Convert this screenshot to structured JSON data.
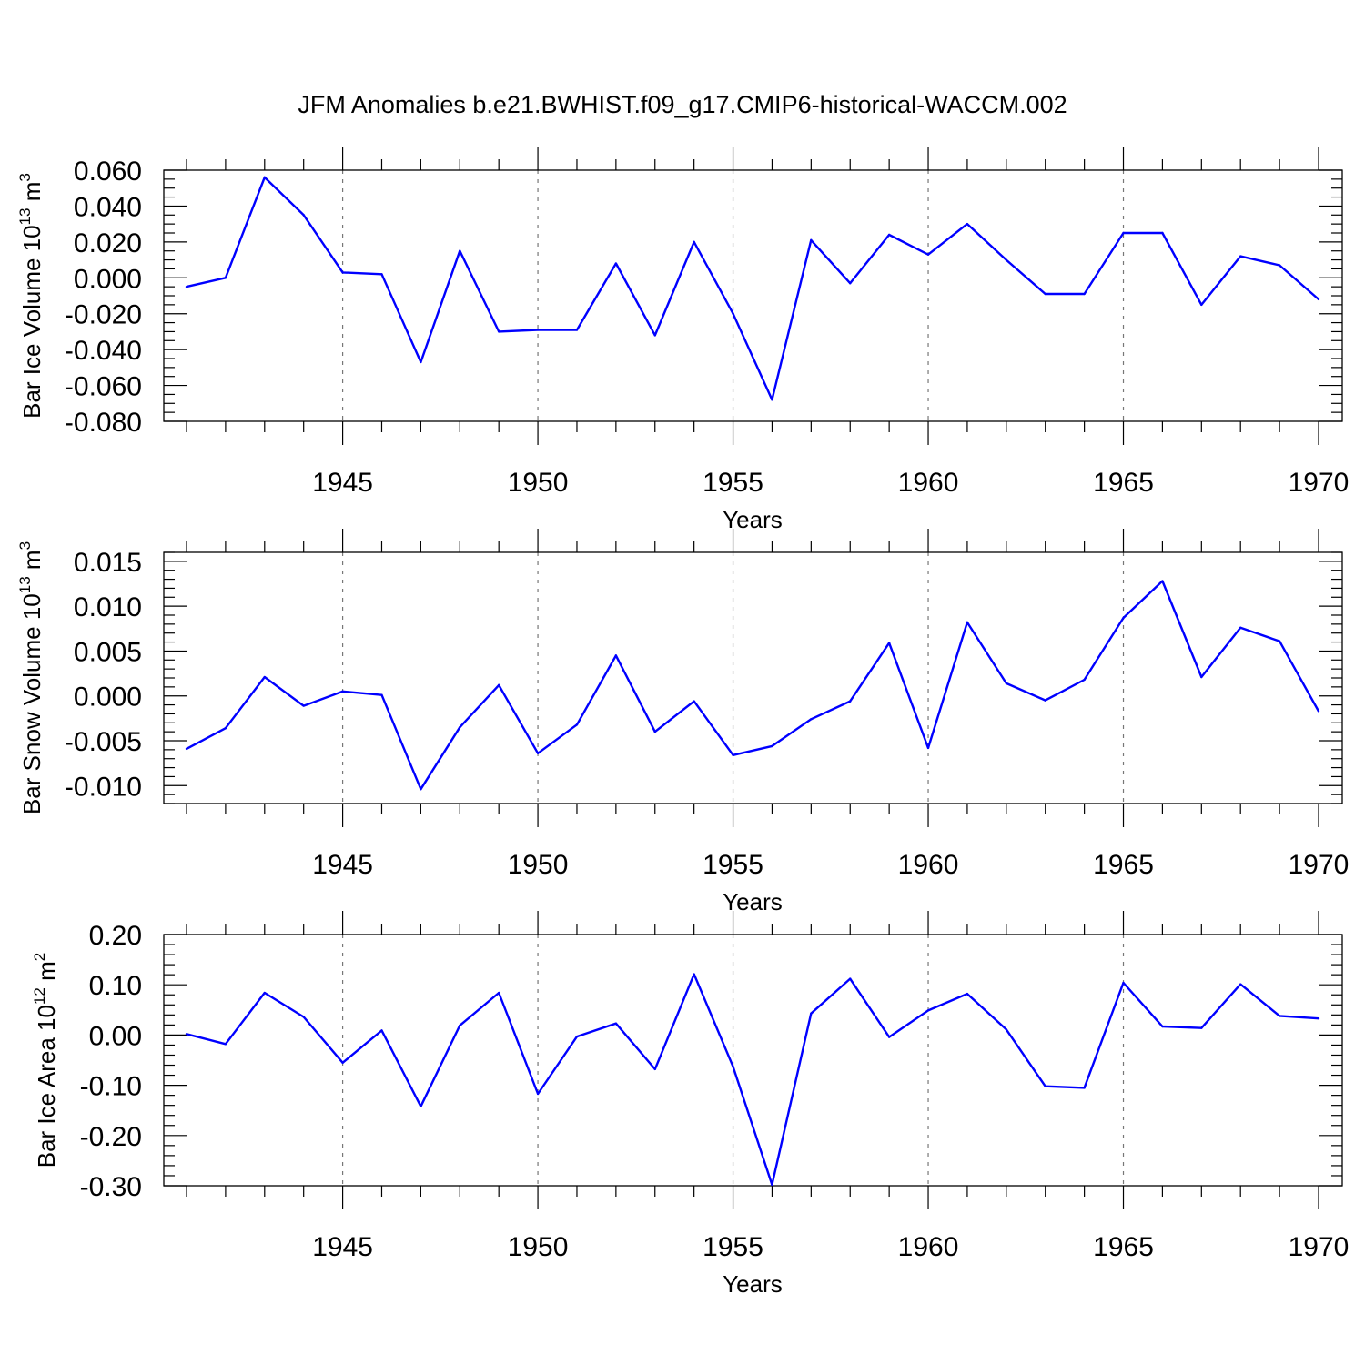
{
  "title": "JFM Anomalies b.e21.BWHIST.f09_g17.CMIP6-historical-WACCM.002",
  "line_color": "#0000ff",
  "chart_data": [
    {
      "type": "line",
      "ylabel_text": "Bar Ice Volume 10",
      "ylabel_exp": "13",
      "ylabel_unit": " m",
      "ylabel_unit_exp": "3",
      "xlabel": "Years",
      "xlim": [
        1941,
        1970
      ],
      "ylim": [
        -0.08,
        0.06
      ],
      "yticks": [
        -0.08,
        -0.06,
        -0.04,
        -0.02,
        0.0,
        0.02,
        0.04,
        0.06
      ],
      "ytick_labels": [
        "-0.080",
        "-0.060",
        "-0.040",
        "-0.020",
        "0.000",
        "0.020",
        "0.040",
        "0.060"
      ],
      "yminor_step": 0.005,
      "xticks": [
        1945,
        1950,
        1955,
        1960,
        1965,
        1970
      ],
      "xtick_labels": [
        "1945",
        "1950",
        "1955",
        "1960",
        "1965",
        "1970"
      ],
      "grid": "dashed vertical at major x ticks",
      "x": [
        1941,
        1942,
        1943,
        1944,
        1945,
        1946,
        1947,
        1948,
        1949,
        1950,
        1951,
        1952,
        1953,
        1954,
        1955,
        1956,
        1957,
        1958,
        1959,
        1960,
        1961,
        1962,
        1963,
        1964,
        1965,
        1966,
        1967,
        1968,
        1969,
        1970
      ],
      "y": [
        -0.005,
        0.0,
        0.056,
        0.035,
        0.003,
        0.002,
        -0.047,
        0.015,
        -0.03,
        -0.029,
        -0.029,
        0.008,
        -0.032,
        0.02,
        -0.02,
        -0.068,
        0.021,
        -0.003,
        0.024,
        0.013,
        0.03,
        0.01,
        -0.009,
        -0.009,
        0.025,
        0.025,
        -0.015,
        0.012,
        0.007,
        -0.012
      ]
    },
    {
      "type": "line",
      "ylabel_text": "Bar Snow Volume 10",
      "ylabel_exp": "13",
      "ylabel_unit": " m",
      "ylabel_unit_exp": "3",
      "xlabel": "Years",
      "xlim": [
        1941,
        1970
      ],
      "ylim": [
        -0.012,
        0.016
      ],
      "yticks": [
        -0.01,
        -0.005,
        0.0,
        0.005,
        0.01,
        0.015
      ],
      "ytick_labels": [
        "-0.010",
        "-0.005",
        "0.000",
        "0.005",
        "0.010",
        "0.015"
      ],
      "yminor_step": 0.001,
      "xticks": [
        1945,
        1950,
        1955,
        1960,
        1965,
        1970
      ],
      "xtick_labels": [
        "1945",
        "1950",
        "1955",
        "1960",
        "1965",
        "1970"
      ],
      "grid": "dashed vertical at major x ticks",
      "x": [
        1941,
        1942,
        1943,
        1944,
        1945,
        1946,
        1947,
        1948,
        1949,
        1950,
        1951,
        1952,
        1953,
        1954,
        1955,
        1956,
        1957,
        1958,
        1959,
        1960,
        1961,
        1962,
        1963,
        1964,
        1965,
        1966,
        1967,
        1968,
        1969,
        1970
      ],
      "y": [
        -0.0059,
        -0.0036,
        0.0021,
        -0.0011,
        0.0005,
        0.0001,
        -0.0104,
        -0.0035,
        0.0012,
        -0.0064,
        -0.0032,
        0.0045,
        -0.004,
        -0.0006,
        -0.0066,
        -0.0056,
        -0.0026,
        -0.0006,
        0.0059,
        -0.0058,
        0.0082,
        0.0014,
        -0.0005,
        0.0018,
        0.0087,
        0.0128,
        0.0021,
        0.0076,
        0.0061,
        -0.0017
      ]
    },
    {
      "type": "line",
      "ylabel_text": "Bar Ice Area 10",
      "ylabel_exp": "12",
      "ylabel_unit": " m",
      "ylabel_unit_exp": "2",
      "xlabel": "Years",
      "xlim": [
        1941,
        1970
      ],
      "ylim": [
        -0.3,
        0.2
      ],
      "yticks": [
        -0.3,
        -0.2,
        -0.1,
        0.0,
        0.1,
        0.2
      ],
      "ytick_labels": [
        "-0.30",
        "-0.20",
        "-0.10",
        "0.00",
        "0.10",
        "0.20"
      ],
      "yminor_step": 0.02,
      "xticks": [
        1945,
        1950,
        1955,
        1960,
        1965,
        1970
      ],
      "xtick_labels": [
        "1945",
        "1950",
        "1955",
        "1960",
        "1965",
        "1970"
      ],
      "grid": "dashed vertical at major x ticks",
      "x": [
        1941,
        1942,
        1943,
        1944,
        1945,
        1946,
        1947,
        1948,
        1949,
        1950,
        1951,
        1952,
        1953,
        1954,
        1955,
        1956,
        1957,
        1958,
        1959,
        1960,
        1961,
        1962,
        1963,
        1964,
        1965,
        1966,
        1967,
        1968,
        1969,
        1970
      ],
      "y": [
        0.002,
        -0.018,
        0.084,
        0.036,
        -0.055,
        0.009,
        -0.142,
        0.019,
        0.084,
        -0.117,
        -0.003,
        0.023,
        -0.068,
        0.121,
        -0.063,
        -0.298,
        0.043,
        0.112,
        -0.004,
        0.049,
        0.082,
        0.011,
        -0.102,
        -0.105,
        0.104,
        0.017,
        0.014,
        0.101,
        0.038,
        0.033
      ]
    }
  ]
}
